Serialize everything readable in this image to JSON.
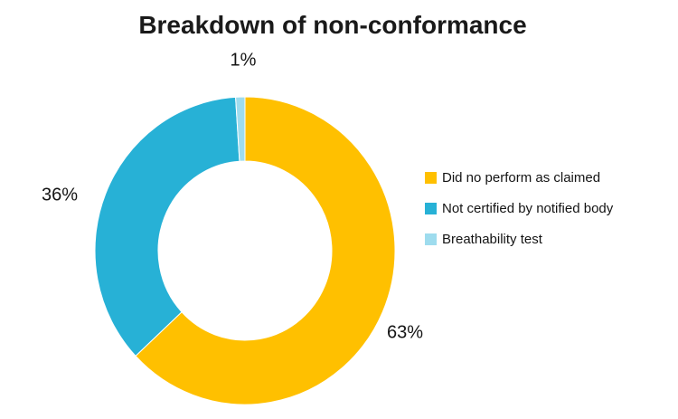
{
  "chart_data": {
    "type": "pie",
    "subtype": "donut",
    "title": "Breakdown of non-conformance",
    "categories": [
      "Did no perform as claimed",
      "Not certified by notified body",
      "Breathability test"
    ],
    "values": [
      63,
      36,
      1
    ],
    "colors": [
      "#FFC000",
      "#27B1D6",
      "#9EDCEE"
    ],
    "data_labels": [
      "63%",
      "36%",
      "1%"
    ],
    "start_angle_deg": 0,
    "direction": "clockwise",
    "hole_ratio": 0.58,
    "legend_position": "right",
    "background_color": "#FFFFFF",
    "text_color": "#1A1A1A"
  }
}
